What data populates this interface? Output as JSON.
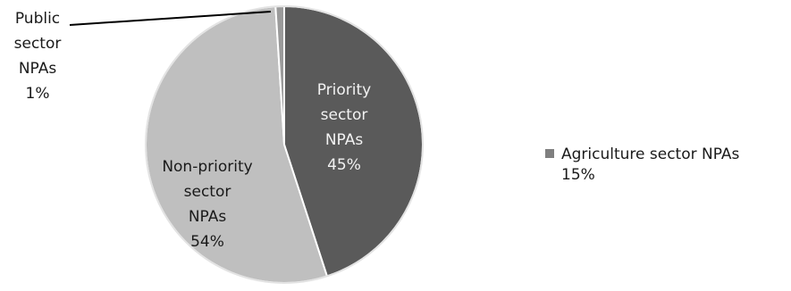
{
  "chart_data": {
    "type": "pie",
    "slices": [
      {
        "label": "Priority sector NPAs",
        "lines": [
          "Priority",
          "sector",
          "NPAs",
          "45%"
        ],
        "value": 45,
        "color": "#5a5a5a"
      },
      {
        "label": "Non-priority sector NPAs",
        "lines": [
          "Non-priority",
          "sector",
          "NPAs",
          "54%"
        ],
        "value": 54,
        "color": "#bfbfbf"
      },
      {
        "label": "Public sector NPAs",
        "lines": [
          "Public",
          "sector",
          "NPAs",
          "1%"
        ],
        "value": 1,
        "color": "#9a9a9a"
      }
    ],
    "legend": [
      {
        "label": "Agriculture sector NPAs",
        "value_text": "15%",
        "color": "#7f7f7f"
      }
    ],
    "legend_position": "right"
  }
}
